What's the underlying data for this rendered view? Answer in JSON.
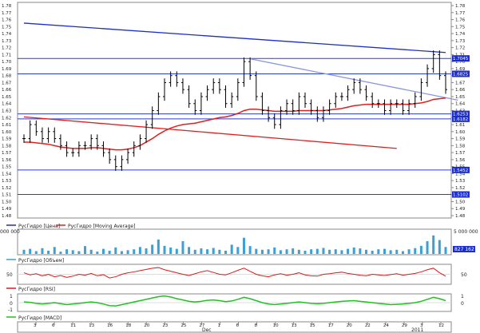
{
  "chart_data": [
    {
      "panel": "price",
      "type": "line",
      "legend": [
        "РусГидро [Цена]",
        "РусГидро [Moving Average]"
      ],
      "y_ticks": [
        "1.78",
        "1.77",
        "1.76",
        "1.75",
        "1.74",
        "1.73",
        "1.72",
        "1.71",
        "1.70",
        "1.69",
        "1.68",
        "1.67",
        "1.66",
        "1.65",
        "1.64",
        "1.63",
        "1.62",
        "1.61",
        "1.60",
        "1.59",
        "1.58",
        "1.57",
        "1.56",
        "1.55",
        "1.54",
        "1.53",
        "1.52",
        "1.51",
        "1.50",
        "1.49",
        "1.48"
      ],
      "ylim": [
        1.48,
        1.78
      ],
      "x_ticks": [
        "3",
        "6",
        "11",
        "13",
        "16",
        "18",
        "20",
        "23",
        "25",
        "27",
        "1",
        "6",
        "8",
        "10",
        "13",
        "15",
        "17",
        "20",
        "22",
        "24",
        "29",
        "3",
        "12"
      ],
      "x_group_labels": [
        "Dec",
        "2011"
      ],
      "series": [
        {
          "name": "РусГидро [Цена]",
          "color": "#000000",
          "values": [
            1.59,
            1.61,
            1.6,
            1.59,
            1.6,
            1.59,
            1.58,
            1.57,
            1.57,
            1.58,
            1.58,
            1.59,
            1.58,
            1.57,
            1.56,
            1.55,
            1.56,
            1.57,
            1.58,
            1.59,
            1.61,
            1.63,
            1.65,
            1.67,
            1.68,
            1.67,
            1.66,
            1.64,
            1.63,
            1.65,
            1.66,
            1.67,
            1.66,
            1.64,
            1.65,
            1.67,
            1.7,
            1.68,
            1.65,
            1.63,
            1.62,
            1.61,
            1.63,
            1.64,
            1.63,
            1.65,
            1.64,
            1.63,
            1.62,
            1.63,
            1.64,
            1.65,
            1.65,
            1.66,
            1.67,
            1.66,
            1.65,
            1.64,
            1.64,
            1.63,
            1.64,
            1.64,
            1.63,
            1.64,
            1.65,
            1.67,
            1.69,
            1.71,
            1.68,
            1.66
          ]
        },
        {
          "name": "РусГидро [Moving Average]",
          "color": "#e02020",
          "values": [
            1.585,
            1.585,
            1.584,
            1.583,
            1.582,
            1.58,
            1.578,
            1.577,
            1.576,
            1.576,
            1.576,
            1.577,
            1.577,
            1.576,
            1.575,
            1.574,
            1.574,
            1.575,
            1.577,
            1.58,
            1.585,
            1.59,
            1.596,
            1.601,
            1.605,
            1.608,
            1.61,
            1.611,
            1.612,
            1.614,
            1.616,
            1.618,
            1.62,
            1.621,
            1.623,
            1.626,
            1.63,
            1.632,
            1.632,
            1.631,
            1.63,
            1.629,
            1.629,
            1.629,
            1.629,
            1.63,
            1.63,
            1.63,
            1.63,
            1.63,
            1.631,
            1.632,
            1.633,
            1.635,
            1.637,
            1.638,
            1.639,
            1.639,
            1.639,
            1.639,
            1.639,
            1.639,
            1.639,
            1.639,
            1.64,
            1.641,
            1.643,
            1.646,
            1.647,
            1.648
          ]
        }
      ],
      "horizontal_levels": [
        {
          "value": 1.7045,
          "label": "1.7045"
        },
        {
          "value": 1.6825,
          "label": "1.6825"
        },
        {
          "value": 1.6253,
          "label": "1.6253"
        },
        {
          "value": 1.6182,
          "label": "1.6182"
        },
        {
          "value": 1.5452,
          "label": "1.5452"
        },
        {
          "value": 1.5102,
          "label": "1.5102"
        }
      ],
      "trendlines": [
        {
          "color": "#1c2ec8",
          "from": {
            "i": 0,
            "y": 1.755
          },
          "to": {
            "i": 69,
            "y": 1.713
          }
        },
        {
          "color": "#8a94e0",
          "from": {
            "i": 37,
            "y": 1.704
          },
          "to": {
            "i": 71,
            "y": 1.645
          }
        },
        {
          "color": "#e02020",
          "from": {
            "i": 0,
            "y": 1.621
          },
          "to": {
            "i": 61,
            "y": 1.576
          }
        }
      ]
    },
    {
      "panel": "volume",
      "type": "bar",
      "legend": [
        "РусГидро [Объем]"
      ],
      "y_ticks": [
        "000 000",
        "5 000 000"
      ],
      "last_value_label": "827 162",
      "series": [
        {
          "name": "РусГидро [Объем]",
          "color": "#3aa0d8",
          "values": [
            0.18,
            0.22,
            0.12,
            0.25,
            0.14,
            0.3,
            0.1,
            0.2,
            0.16,
            0.12,
            0.34,
            0.18,
            0.1,
            0.22,
            0.14,
            0.28,
            0.12,
            0.16,
            0.2,
            0.3,
            0.24,
            0.4,
            0.62,
            0.35,
            0.28,
            0.22,
            0.55,
            0.3,
            0.18,
            0.24,
            0.2,
            0.26,
            0.18,
            0.14,
            0.4,
            0.3,
            0.7,
            0.34,
            0.22,
            0.18,
            0.2,
            0.28,
            0.16,
            0.2,
            0.24,
            0.18,
            0.14,
            0.2,
            0.22,
            0.26,
            0.18,
            0.2,
            0.16,
            0.22,
            0.28,
            0.24,
            0.18,
            0.14,
            0.2,
            0.22,
            0.16,
            0.18,
            0.12,
            0.2,
            0.25,
            0.35,
            0.55,
            0.8,
            0.6,
            0.3
          ]
        }
      ]
    },
    {
      "panel": "rsi",
      "type": "line",
      "legend": [
        "РусГидро [RSI]"
      ],
      "y_ticks": [
        "50"
      ],
      "ylim": [
        20,
        80
      ],
      "series": [
        {
          "name": "РусГидро [RSI]",
          "color": "#d81c1c",
          "values": [
            55,
            48,
            52,
            45,
            50,
            42,
            46,
            40,
            44,
            50,
            47,
            53,
            45,
            49,
            38,
            42,
            50,
            55,
            58,
            62,
            66,
            70,
            72,
            65,
            60,
            55,
            50,
            46,
            52,
            58,
            62,
            56,
            50,
            48,
            55,
            63,
            70,
            60,
            50,
            45,
            42,
            48,
            52,
            47,
            50,
            55,
            48,
            45,
            44,
            50,
            52,
            55,
            57,
            53,
            50,
            47,
            45,
            50,
            48,
            46,
            49,
            52,
            47,
            50,
            53,
            58,
            65,
            70,
            55,
            44
          ]
        }
      ]
    },
    {
      "panel": "macd",
      "type": "line",
      "legend": [
        "РусГидро [MACD]"
      ],
      "y_ticks": [
        "1",
        "0",
        "-1"
      ],
      "ylim": [
        -1.2,
        1.2
      ],
      "series": [
        {
          "name": "РусГидро [MACD]",
          "color": "#22c022",
          "values": [
            0.1,
            0.05,
            -0.1,
            -0.2,
            -0.1,
            0.0,
            -0.15,
            -0.3,
            -0.2,
            -0.1,
            0.0,
            0.1,
            0.0,
            -0.2,
            -0.45,
            -0.5,
            -0.3,
            -0.1,
            0.1,
            0.3,
            0.5,
            0.7,
            0.9,
            1.0,
            0.85,
            0.6,
            0.4,
            0.2,
            0.1,
            0.2,
            0.35,
            0.4,
            0.3,
            0.15,
            0.25,
            0.5,
            0.8,
            0.6,
            0.3,
            0.0,
            -0.2,
            -0.3,
            -0.2,
            -0.1,
            0.0,
            0.1,
            0.0,
            -0.1,
            -0.15,
            -0.1,
            0.0,
            0.1,
            0.2,
            0.25,
            0.3,
            0.2,
            0.1,
            0.0,
            -0.1,
            -0.2,
            -0.3,
            -0.25,
            -0.2,
            -0.1,
            0.0,
            0.2,
            0.5,
            0.8,
            0.6,
            0.3
          ]
        }
      ]
    }
  ]
}
